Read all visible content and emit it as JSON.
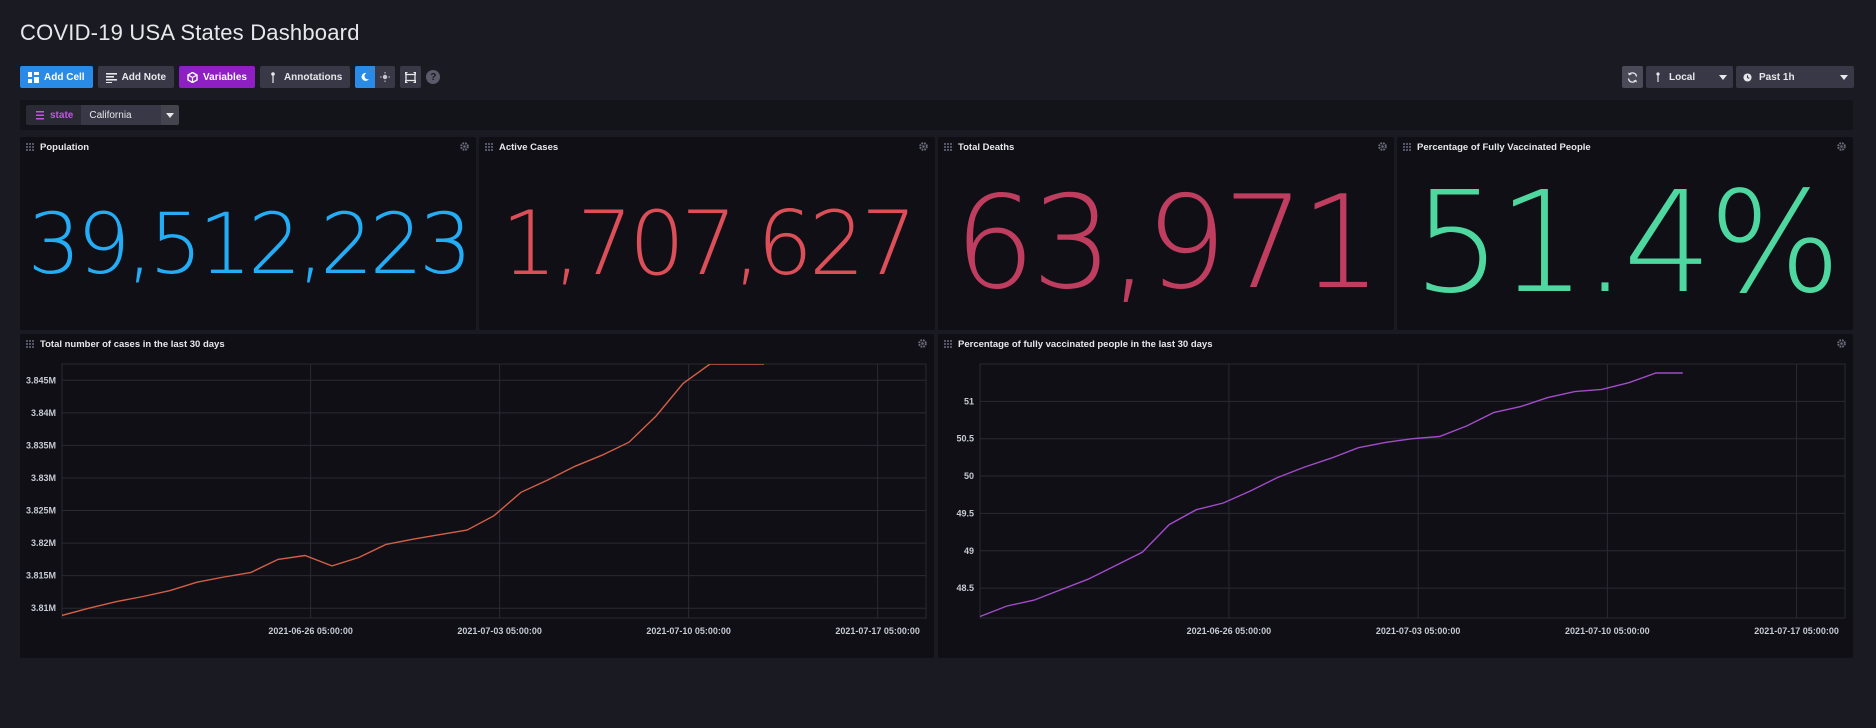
{
  "page": {
    "title": "COVID-19 USA States Dashboard"
  },
  "toolbar": {
    "add_cell": "Add Cell",
    "add_note": "Add Note",
    "variables": "Variables",
    "annotations": "Annotations",
    "help": "?"
  },
  "controls": {
    "timezone": "Local",
    "range": "Past 1h"
  },
  "variable": {
    "name": "state",
    "value": "California"
  },
  "cells": {
    "population": {
      "title": "Population",
      "value": "39,512,223",
      "color": "#22adf6"
    },
    "active": {
      "title": "Active Cases",
      "value": "1,707,627",
      "color": "#dc4e58"
    },
    "deaths": {
      "title": "Total Deaths",
      "value": "63,971",
      "color": "#bf3d5e"
    },
    "vaccinated": {
      "title": "Percentage of Fully Vaccinated People",
      "value": "51.4%",
      "color": "#4ed8a0"
    },
    "cases_chart": {
      "title": "Total number of cases in the last 30 days"
    },
    "vax_chart": {
      "title": "Percentage of fully vaccinated people in the last 30 days"
    }
  },
  "chart_data": [
    {
      "type": "line",
      "title": "Total number of cases in the last 30 days",
      "color": "#d45f47",
      "x_ticks": [
        "2021-06-26 05:00:00",
        "2021-07-03 05:00:00",
        "2021-07-10 05:00:00",
        "2021-07-17 05:00:00"
      ],
      "y_ticks": [
        "3.81M",
        "3.815M",
        "3.82M",
        "3.825M",
        "3.83M",
        "3.835M",
        "3.84M",
        "3.845M"
      ],
      "ylim": [
        3.8085,
        3.8475
      ],
      "xlim": [
        "2021-06-17",
        "2021-07-19"
      ],
      "grid": true,
      "x": [
        "2021-06-17",
        "2021-06-18",
        "2021-06-19",
        "2021-06-20",
        "2021-06-21",
        "2021-06-22",
        "2021-06-23",
        "2021-06-24",
        "2021-06-25",
        "2021-06-26",
        "2021-06-27",
        "2021-06-28",
        "2021-06-29",
        "2021-06-30",
        "2021-07-01",
        "2021-07-02",
        "2021-07-03",
        "2021-07-04",
        "2021-07-05",
        "2021-07-06",
        "2021-07-07",
        "2021-07-08",
        "2021-07-09",
        "2021-07-10",
        "2021-07-11",
        "2021-07-12",
        "2021-07-13"
      ],
      "values": [
        3.8089,
        3.81,
        3.811,
        3.8118,
        3.8127,
        3.814,
        3.8148,
        3.8155,
        3.8175,
        3.8181,
        3.8165,
        3.8178,
        3.8198,
        3.8206,
        3.8213,
        3.822,
        3.8242,
        3.8278,
        3.8297,
        3.8318,
        3.8335,
        3.8355,
        3.8395,
        3.8445,
        3.8475,
        3.8475,
        3.8475
      ]
    },
    {
      "type": "line",
      "title": "Percentage of fully vaccinated people in the last 30 days",
      "color": "#a24cc9",
      "x_ticks": [
        "2021-06-26 05:00:00",
        "2021-07-03 05:00:00",
        "2021-07-10 05:00:00",
        "2021-07-17 05:00:00"
      ],
      "y_ticks": [
        "48.5",
        "49",
        "49.5",
        "50",
        "50.5",
        "51"
      ],
      "ylim": [
        48.1,
        51.5
      ],
      "xlim": [
        "2021-06-17",
        "2021-07-19"
      ],
      "grid": true,
      "x": [
        "2021-06-17",
        "2021-06-18",
        "2021-06-19",
        "2021-06-20",
        "2021-06-21",
        "2021-06-22",
        "2021-06-23",
        "2021-06-24",
        "2021-06-25",
        "2021-06-26",
        "2021-06-27",
        "2021-06-28",
        "2021-06-29",
        "2021-06-30",
        "2021-07-01",
        "2021-07-02",
        "2021-07-03",
        "2021-07-04",
        "2021-07-05",
        "2021-07-06",
        "2021-07-07",
        "2021-07-08",
        "2021-07-09",
        "2021-07-10",
        "2021-07-11",
        "2021-07-12",
        "2021-07-13"
      ],
      "values": [
        48.12,
        48.26,
        48.34,
        48.48,
        48.62,
        48.8,
        48.98,
        49.35,
        49.55,
        49.64,
        49.8,
        49.98,
        50.12,
        50.24,
        50.38,
        50.45,
        50.5,
        50.53,
        50.67,
        50.85,
        50.93,
        51.05,
        51.13,
        51.16,
        51.25,
        51.38,
        51.38
      ]
    }
  ]
}
